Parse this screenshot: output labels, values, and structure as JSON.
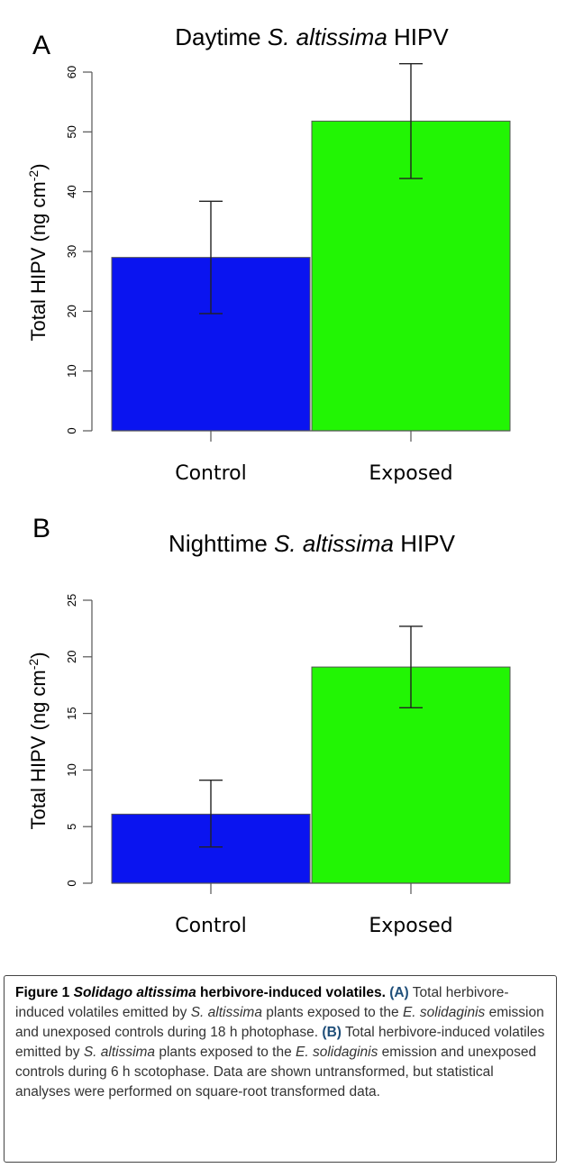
{
  "chart_data": [
    {
      "panel": "A",
      "type": "bar",
      "title_parts": [
        "Daytime ",
        "S. altissima",
        " HIPV"
      ],
      "ylabel_parts": [
        "Total HIPV (ng cm",
        "-2",
        ")"
      ],
      "categories": [
        "Control",
        "Exposed"
      ],
      "values": [
        29,
        51.8
      ],
      "errors_low": [
        19.6,
        42.2
      ],
      "errors_high": [
        38.4,
        61.4
      ],
      "colors": [
        "#0a14f0",
        "#22f504"
      ],
      "yticks": [
        0,
        10,
        20,
        30,
        40,
        50,
        60
      ],
      "ylim": [
        0,
        62
      ],
      "grid": false
    },
    {
      "panel": "B",
      "type": "bar",
      "title_parts": [
        "Nighttime ",
        "S. altissima",
        " HIPV"
      ],
      "ylabel_parts": [
        "Total HIPV (ng cm",
        "-2",
        ")"
      ],
      "categories": [
        "Control",
        "Exposed"
      ],
      "values": [
        6.1,
        19.1
      ],
      "errors_low": [
        3.2,
        15.5
      ],
      "errors_high": [
        9.1,
        22.7
      ],
      "colors": [
        "#0a14f0",
        "#22f504"
      ],
      "yticks": [
        0,
        5,
        10,
        15,
        20,
        25
      ],
      "ylim": [
        0,
        25
      ],
      "grid": false
    }
  ],
  "caption": {
    "figure_label": "Figure 1",
    "title_italic": "Solidago altissima",
    "title_rest": " herbivore-induced volatiles.",
    "parts": [
      {
        "t": " "
      },
      {
        "t": "(A)",
        "c": "hl"
      },
      {
        "t": " Total herbivore-induced volatiles emitted by "
      },
      {
        "t": "S. altissima",
        "i": true
      },
      {
        "t": " plants exposed to the "
      },
      {
        "t": "E. solidaginis",
        "i": true
      },
      {
        "t": " emission and unexposed controls during 18 h photophase. "
      },
      {
        "t": "(B)",
        "c": "hl"
      },
      {
        "t": " Total herbivore-induced volatiles emitted by "
      },
      {
        "t": "S. altissima",
        "i": true
      },
      {
        "t": " plants exposed to the "
      },
      {
        "t": "E. solidaginis",
        "i": true
      },
      {
        "t": " emission and unexposed controls during 6 h scotophase. Data are shown untransformed, but statistical analyses were performed on square-root transformed data."
      }
    ]
  }
}
